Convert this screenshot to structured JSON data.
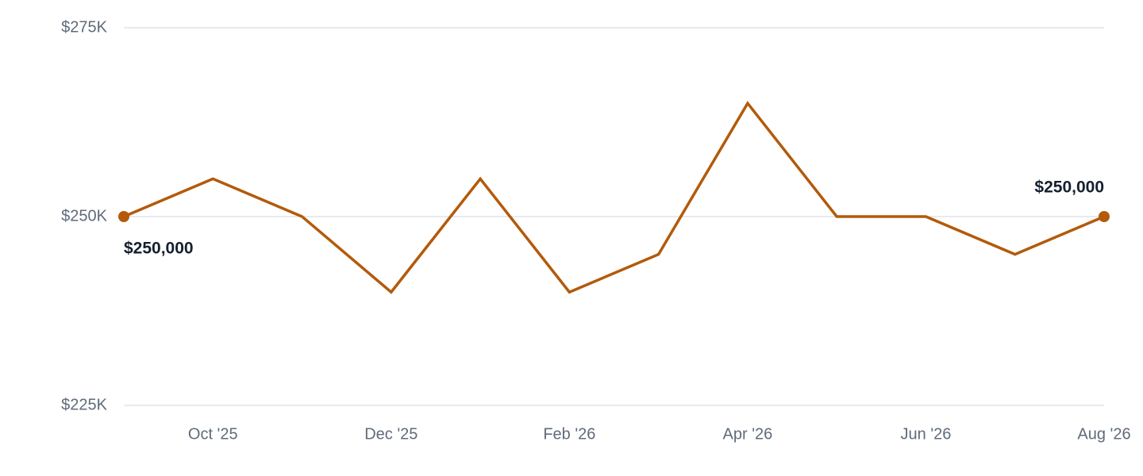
{
  "chart_data": {
    "type": "line",
    "categories": [
      null,
      "Oct '25",
      null,
      "Dec '25",
      null,
      "Feb '26",
      null,
      "Apr '26",
      null,
      "Jun '26",
      null,
      "Aug '26"
    ],
    "values": [
      250000,
      255000,
      250000,
      240000,
      255000,
      240000,
      245000,
      265000,
      250000,
      250000,
      245000,
      250000
    ],
    "value_labels": [
      "$250,000",
      null,
      null,
      null,
      null,
      null,
      null,
      null,
      null,
      null,
      null,
      "$250,000"
    ],
    "color": "#b35a0b",
    "ylim": [
      225000,
      275000
    ],
    "yticks": [
      {
        "value": 225000,
        "label": "$225K"
      },
      {
        "value": 250000,
        "label": "$250K"
      },
      {
        "value": 275000,
        "label": "$275K"
      }
    ],
    "grid": true
  }
}
